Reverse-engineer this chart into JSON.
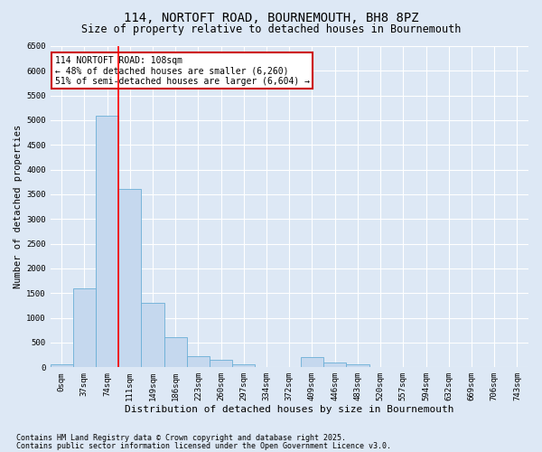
{
  "title": "114, NORTOFT ROAD, BOURNEMOUTH, BH8 8PZ",
  "subtitle": "Size of property relative to detached houses in Bournemouth",
  "xlabel": "Distribution of detached houses by size in Bournemouth",
  "ylabel": "Number of detached properties",
  "bar_labels": [
    "0sqm",
    "37sqm",
    "74sqm",
    "111sqm",
    "149sqm",
    "186sqm",
    "223sqm",
    "260sqm",
    "297sqm",
    "334sqm",
    "372sqm",
    "409sqm",
    "446sqm",
    "483sqm",
    "520sqm",
    "557sqm",
    "594sqm",
    "632sqm",
    "669sqm",
    "706sqm",
    "743sqm"
  ],
  "bar_values": [
    50,
    1600,
    5100,
    3600,
    1300,
    600,
    220,
    150,
    50,
    0,
    0,
    200,
    100,
    50,
    0,
    0,
    0,
    0,
    0,
    0,
    0
  ],
  "bar_color": "#c5d8ee",
  "bar_edge_color": "#6aaed6",
  "background_color": "#dde8f5",
  "plot_bg_color": "#dde8f5",
  "grid_color": "#ffffff",
  "red_line_index": 3,
  "annotation_text": "114 NORTOFT ROAD: 108sqm\n← 48% of detached houses are smaller (6,260)\n51% of semi-detached houses are larger (6,604) →",
  "annotation_box_color": "#ffffff",
  "annotation_box_edge_color": "#cc0000",
  "ylim": [
    0,
    6500
  ],
  "yticks": [
    0,
    500,
    1000,
    1500,
    2000,
    2500,
    3000,
    3500,
    4000,
    4500,
    5000,
    5500,
    6000,
    6500
  ],
  "footnote1": "Contains HM Land Registry data © Crown copyright and database right 2025.",
  "footnote2": "Contains public sector information licensed under the Open Government Licence v3.0.",
  "title_fontsize": 10,
  "subtitle_fontsize": 8.5,
  "xlabel_fontsize": 8,
  "ylabel_fontsize": 7.5,
  "tick_fontsize": 6.5,
  "annot_fontsize": 7,
  "footnote_fontsize": 6
}
